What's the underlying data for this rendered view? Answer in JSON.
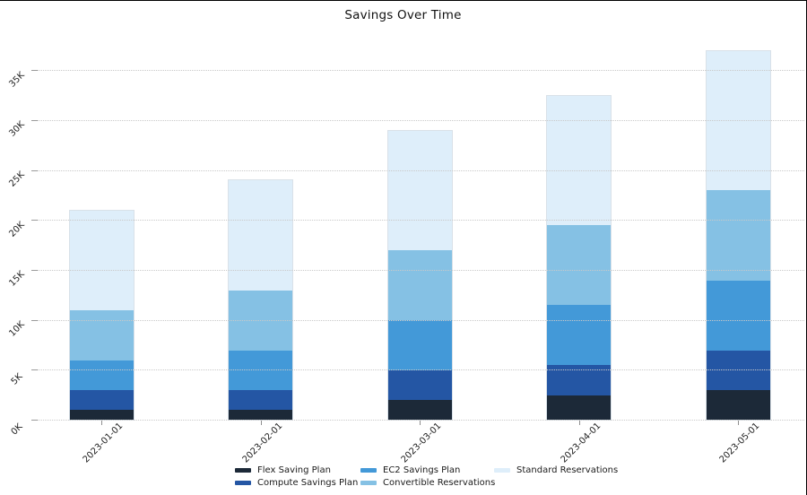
{
  "chart_data": {
    "type": "bar",
    "stacked": true,
    "title": "Savings Over Time",
    "categories": [
      "2023-01-01",
      "2023-02-01",
      "2023-03-01",
      "2023-04-01",
      "2023-05-01"
    ],
    "series": [
      {
        "name": "Flex Saving Plan",
        "color": "#1c2938",
        "values": [
          1000,
          1000,
          2000,
          2500,
          3000
        ]
      },
      {
        "name": "Compute Savings Plan",
        "color": "#2456a4",
        "values": [
          2000,
          2000,
          3000,
          3000,
          4000
        ]
      },
      {
        "name": "EC2 Savings Plan",
        "color": "#4399d8",
        "values": [
          3000,
          4000,
          5000,
          6000,
          7000
        ]
      },
      {
        "name": "Convertible Reservations",
        "color": "#85c1e4",
        "values": [
          5000,
          6000,
          7000,
          8000,
          9000
        ]
      },
      {
        "name": "Standard Reservations",
        "color": "#deeefa",
        "values": [
          10000,
          11000,
          12000,
          13000,
          14000
        ]
      }
    ],
    "stack_totals": [
      21000,
      24000,
      29000,
      32500,
      37000
    ],
    "y_axis": {
      "tick_values": [
        0,
        5000,
        10000,
        15000,
        20000,
        25000,
        30000,
        35000
      ],
      "tick_labels": [
        "0K",
        "5K",
        "10K",
        "15K",
        "20K",
        "25K",
        "30K",
        "35K"
      ],
      "ylim": [
        0,
        38500
      ]
    },
    "x_axis": {
      "label_rotation_deg": 45
    },
    "grid": {
      "horizontal": true,
      "style": "dotted",
      "color": "#c9c9c9"
    },
    "legend": {
      "position": "bottom",
      "rows": 2,
      "columns": 3
    }
  }
}
